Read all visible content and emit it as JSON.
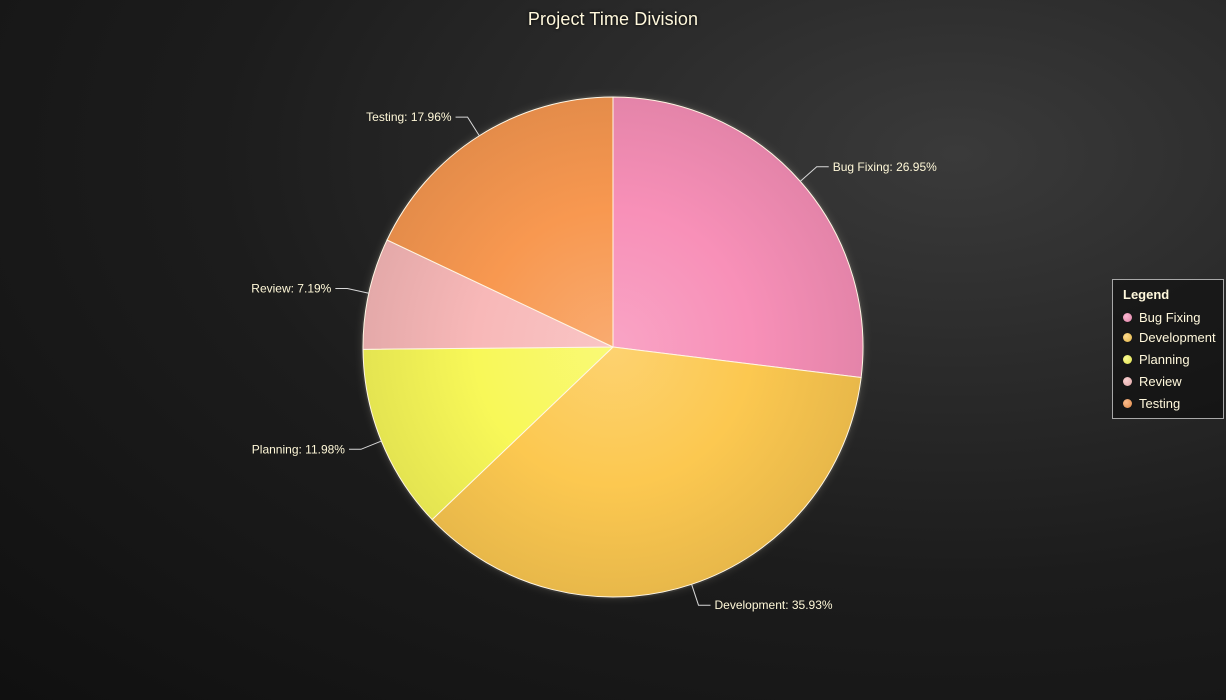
{
  "chart_data": {
    "type": "pie",
    "title": "Project Time Division",
    "categories": [
      "Bug Fixing",
      "Development",
      "Planning",
      "Review",
      "Testing"
    ],
    "values": [
      26.95,
      35.93,
      11.98,
      7.19,
      17.96
    ],
    "labels": [
      "Bug Fixing: 26.95%",
      "Development: 35.93%",
      "Planning: 11.98%",
      "Review: 7.19%",
      "Testing: 17.96%"
    ],
    "colors": [
      "#f890b8",
      "#fcc850",
      "#f8f858",
      "#f8b8b8",
      "#f89850"
    ],
    "legend": {
      "title": "Legend",
      "position": "right"
    }
  }
}
